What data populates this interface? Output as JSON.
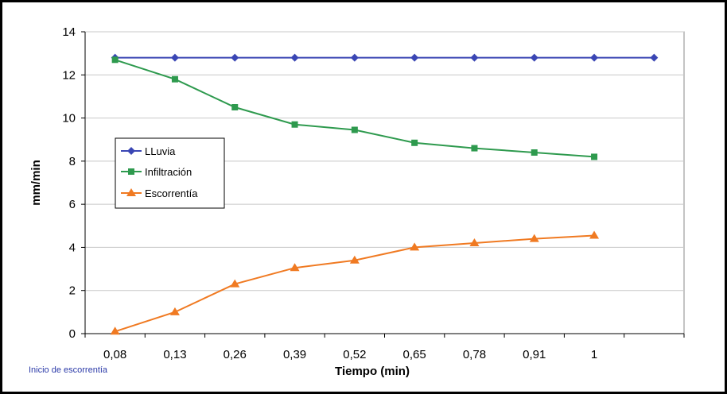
{
  "chart_data": {
    "type": "line",
    "categories": [
      "0,08",
      "0,13",
      "0,26",
      "0,39",
      "0,52",
      "0,65",
      "0,78",
      "0,91",
      "1",
      ""
    ],
    "xlabel": "Tiempo (min)",
    "ylabel": "mm/min",
    "ylim": [
      0,
      14
    ],
    "yticks": [
      0,
      2,
      4,
      6,
      8,
      10,
      12,
      14
    ],
    "grid": true,
    "legend_position": "left-center",
    "series": [
      {
        "name": "LLuvia",
        "color": "#3a46b4",
        "marker": "diamond",
        "values": [
          12.8,
          12.8,
          12.8,
          12.8,
          12.8,
          12.8,
          12.8,
          12.8,
          12.8,
          12.8
        ]
      },
      {
        "name": "Infiltración",
        "color": "#2e9a4e",
        "marker": "square",
        "values": [
          12.7,
          11.8,
          10.5,
          9.7,
          9.45,
          8.85,
          8.6,
          8.4,
          8.2,
          null
        ]
      },
      {
        "name": "Escorrentía",
        "color": "#f07a22",
        "marker": "triangle",
        "values": [
          0.1,
          1.0,
          2.3,
          3.05,
          3.4,
          4.0,
          4.2,
          4.4,
          4.55,
          null
        ]
      }
    ],
    "annotation": "Inicio de escorrentía"
  }
}
